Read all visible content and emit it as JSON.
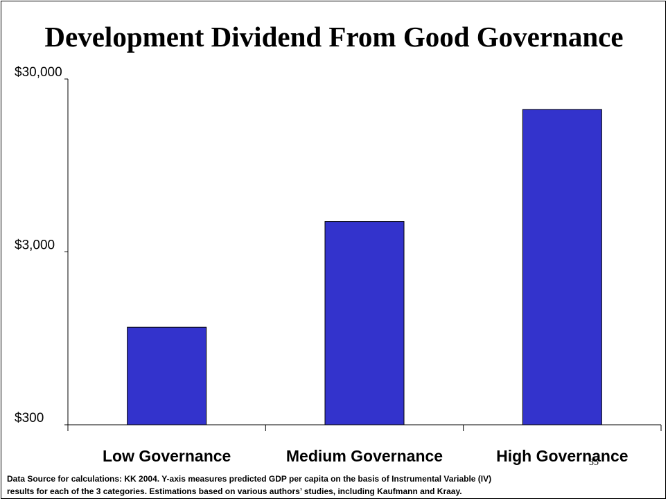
{
  "slide": {
    "number": "35",
    "footnote_line1": "Data Source for calculations: KK 2004.  Y-axis measures predicted GDP per capita on the basis of Instrumental Variable (IV)",
    "footnote_line2": "results for each of the 3 categories.  Estimations based on various authors’ studies, including Kaufmann and Kraay."
  },
  "colors": {
    "bar": "#3333cc",
    "axis": "#000000"
  },
  "chart_data": {
    "type": "bar",
    "title": "Development Dividend From Good Governance",
    "xlabel": "",
    "ylabel": "",
    "y_scale": "log",
    "ylim": [
      300,
      30000
    ],
    "y_ticks": [
      300,
      3000,
      30000
    ],
    "y_tick_labels": [
      "$300",
      "$3,000",
      "$30,000"
    ],
    "categories": [
      "Low Governance",
      "Medium Governance",
      "High Governance"
    ],
    "values": [
      1100,
      4500,
      20000
    ],
    "grid": false,
    "legend": "none"
  }
}
